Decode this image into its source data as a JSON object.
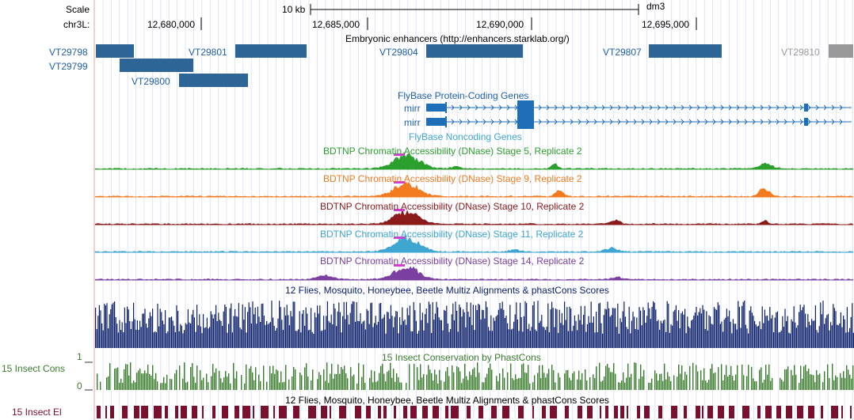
{
  "ruler": {
    "scale_label": "Scale",
    "chrom_label": "chr3L:",
    "scale_bar_label": "10 kb",
    "assembly": "dm3",
    "positions": [
      "12,680,000",
      "12,685,000",
      "12,690,000",
      "12,695,000"
    ]
  },
  "tracks": {
    "enhancers": {
      "title": "Embryonic enhancers (http://enhancers.starklab.org/)",
      "items": [
        "VT29798",
        "VT29799",
        "VT29800",
        "VT29801",
        "VT29804",
        "VT29807",
        "VT29810"
      ]
    },
    "flybase_coding": {
      "title": "FlyBase Protein-Coding Genes",
      "genes": [
        "mirr",
        "mirr"
      ]
    },
    "flybase_noncoding": {
      "title": "FlyBase Noncoding Genes"
    },
    "dnase": [
      {
        "title": "BDTNP Chromatin Accessibility (DNase) Stage 5, Replicate 2",
        "color": "#2ca02c"
      },
      {
        "title": "BDTNP Chromatin Accessibility (DNase) Stage 9, Replicate 2",
        "color": "#f47a1f"
      },
      {
        "title": "BDTNP Chromatin Accessibility (DNase) Stage 10, Replicate 2",
        "color": "#8b1a1a"
      },
      {
        "title": "BDTNP Chromatin Accessibility (DNase) Stage 11, Replicate 2",
        "color": "#3ea6d0"
      },
      {
        "title": "BDTNP Chromatin Accessibility (DNase) Stage 14, Replicate 2",
        "color": "#7b3fa0"
      }
    ],
    "multiz": {
      "title": "12 Flies, Mosquito, Honeybee, Beetle Multiz Alignments & phastCons Scores",
      "color": "#0b1f6b"
    },
    "phastcons": {
      "title": "15 Insect Conservation by PhastCons",
      "side_label": "15 Insect Cons",
      "y_max": "1",
      "y_min": "0",
      "color": "#3a7d2c"
    },
    "elements": {
      "title": "12 Flies, Mosquito, Honeybee, Beetle Multiz Alignments & phastCons Scores",
      "side_label": "15 Insect El",
      "color": "#7a0f2e"
    }
  }
}
